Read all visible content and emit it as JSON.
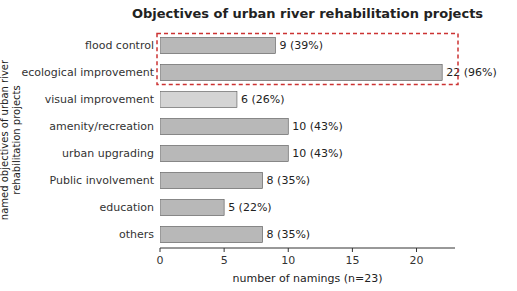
{
  "chart_data": {
    "type": "bar",
    "orientation": "horizontal",
    "title": "Objectives of urban river rehabilitation projects",
    "xlabel": "number of namings (n=23)",
    "ylabel": "named objectives of urban river\nrehabilitation projects",
    "categories": [
      "flood control",
      "ecological improvement",
      "visual improvement",
      "amenity/recreation",
      "urban upgrading",
      "Public involvement",
      "education",
      "others"
    ],
    "values": [
      9,
      22,
      6,
      10,
      10,
      8,
      5,
      8
    ],
    "value_labels": [
      "9 (39%)",
      "22 (96%)",
      "6 (26%)",
      "10 (43%)",
      "10 (43%)",
      "8 (35%)",
      "5 (22%)",
      "8 (35%)"
    ],
    "data_labels": true,
    "colors": [
      "#b8b8b8",
      "#b8b8b8",
      "#d4d4d4",
      "#b8b8b8",
      "#b8b8b8",
      "#b8b8b8",
      "#b8b8b8",
      "#b8b8b8"
    ],
    "xlim": [
      0,
      23
    ],
    "xticks": [
      0,
      5,
      10,
      15,
      20
    ],
    "grid": false
  }
}
